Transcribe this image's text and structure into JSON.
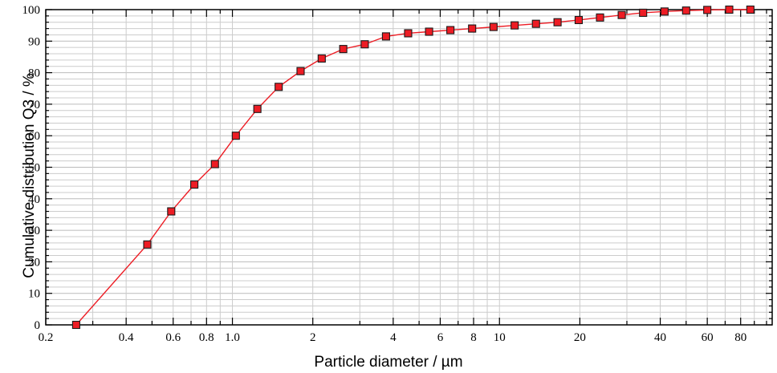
{
  "chart_data": {
    "type": "line",
    "title": "",
    "xlabel": "Particle diameter / µm",
    "ylabel": "Cumulative distribution Q3 / %",
    "x_scale": "log",
    "xlim": [
      0.2,
      105
    ],
    "ylim": [
      0,
      100
    ],
    "grid": "on",
    "legend": "none",
    "x_ticks": [
      {
        "v": 0.2,
        "label": "0.2"
      },
      {
        "v": 0.4,
        "label": "0.4"
      },
      {
        "v": 0.6,
        "label": "0.6"
      },
      {
        "v": 0.8,
        "label": "0.8"
      },
      {
        "v": 1.0,
        "label": "1.0"
      },
      {
        "v": 2,
        "label": "2"
      },
      {
        "v": 4,
        "label": "4"
      },
      {
        "v": 6,
        "label": "6"
      },
      {
        "v": 8,
        "label": "8"
      },
      {
        "v": 10,
        "label": "10"
      },
      {
        "v": 20,
        "label": "20"
      },
      {
        "v": 40,
        "label": "40"
      },
      {
        "v": 60,
        "label": "60"
      },
      {
        "v": 80,
        "label": "80"
      }
    ],
    "y_ticks": [
      {
        "v": 0,
        "label": "0"
      },
      {
        "v": 10,
        "label": "10"
      },
      {
        "v": 20,
        "label": "20"
      },
      {
        "v": 30,
        "label": "30"
      },
      {
        "v": 40,
        "label": "40"
      },
      {
        "v": 50,
        "label": "50"
      },
      {
        "v": 60,
        "label": "60"
      },
      {
        "v": 70,
        "label": "70"
      },
      {
        "v": 80,
        "label": "80"
      },
      {
        "v": 90,
        "label": "90"
      },
      {
        "v": 100,
        "label": "100"
      }
    ],
    "y_minor_step": 2,
    "series": [
      {
        "name": "Cumulative distribution Q3",
        "marker": "square",
        "x": [
          0.26,
          0.48,
          0.59,
          0.72,
          0.86,
          1.03,
          1.24,
          1.49,
          1.8,
          2.16,
          2.6,
          3.13,
          3.76,
          4.55,
          5.45,
          6.55,
          7.9,
          9.5,
          11.4,
          13.7,
          16.5,
          19.8,
          23.8,
          28.7,
          34.5,
          41.5,
          50,
          60,
          72.5,
          87
        ],
        "y": [
          0,
          25.5,
          36,
          44.5,
          51,
          60,
          68.5,
          75.5,
          80.5,
          84.5,
          87.5,
          89,
          91.5,
          92.5,
          93,
          93.5,
          94,
          94.5,
          95,
          95.5,
          96,
          96.7,
          97.5,
          98.3,
          99,
          99.4,
          99.7,
          99.9,
          100,
          100
        ]
      }
    ],
    "colors": {
      "line": "#ed1c24",
      "marker_fill": "#ed1c24",
      "marker_edge": "#1a1a1a",
      "grid_minor": "#cccccc",
      "grid_major": "#bbbbbb",
      "axis": "#000000",
      "text": "#000000"
    }
  }
}
